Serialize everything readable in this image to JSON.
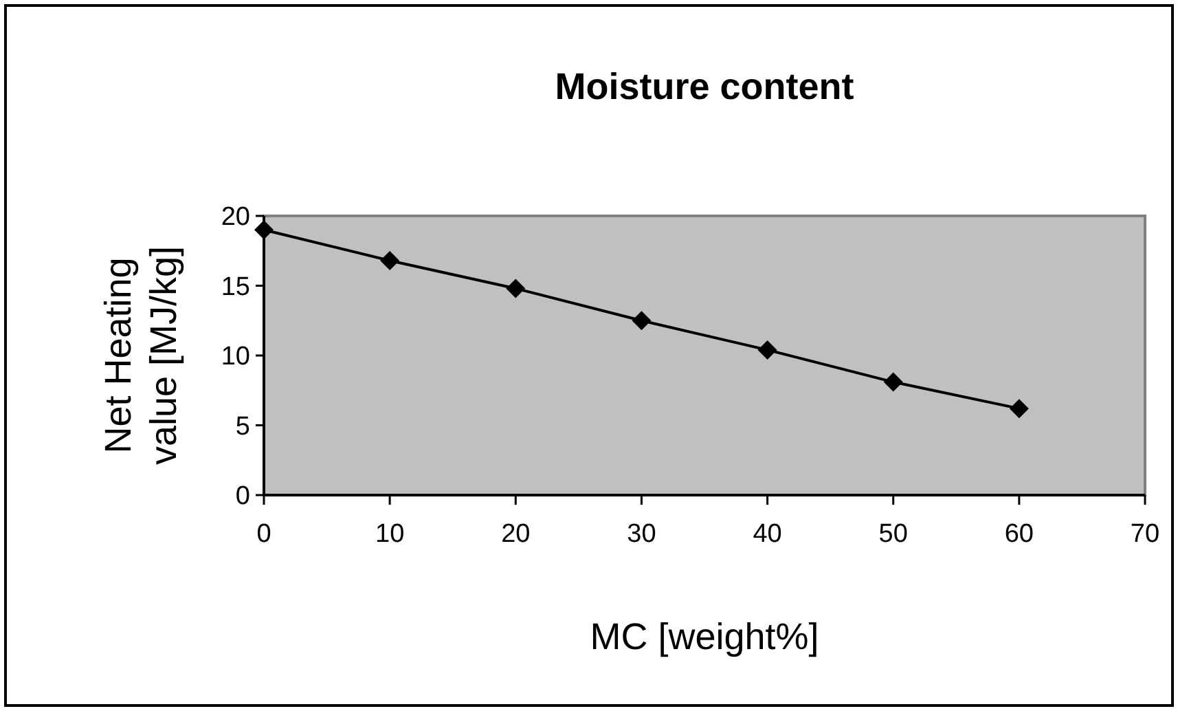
{
  "chart_data": {
    "type": "line",
    "title": "Moisture content",
    "xlabel": "MC [weight%]",
    "ylabel": "Net Heating value [MJ/kg]",
    "x": [
      0,
      10,
      20,
      30,
      40,
      50,
      60
    ],
    "series": [
      {
        "color": "#000000",
        "values": [
          19.0,
          16.8,
          14.8,
          12.5,
          10.4,
          8.1,
          6.2
        ]
      }
    ],
    "xlim": [
      0,
      70
    ],
    "xticks": [
      0,
      10,
      20,
      30,
      40,
      50,
      60,
      70
    ],
    "ylim": [
      0,
      20
    ],
    "yticks": [
      0,
      5,
      10,
      15,
      20
    ],
    "grid": false,
    "marker": "diamond",
    "line_style": "solid"
  }
}
